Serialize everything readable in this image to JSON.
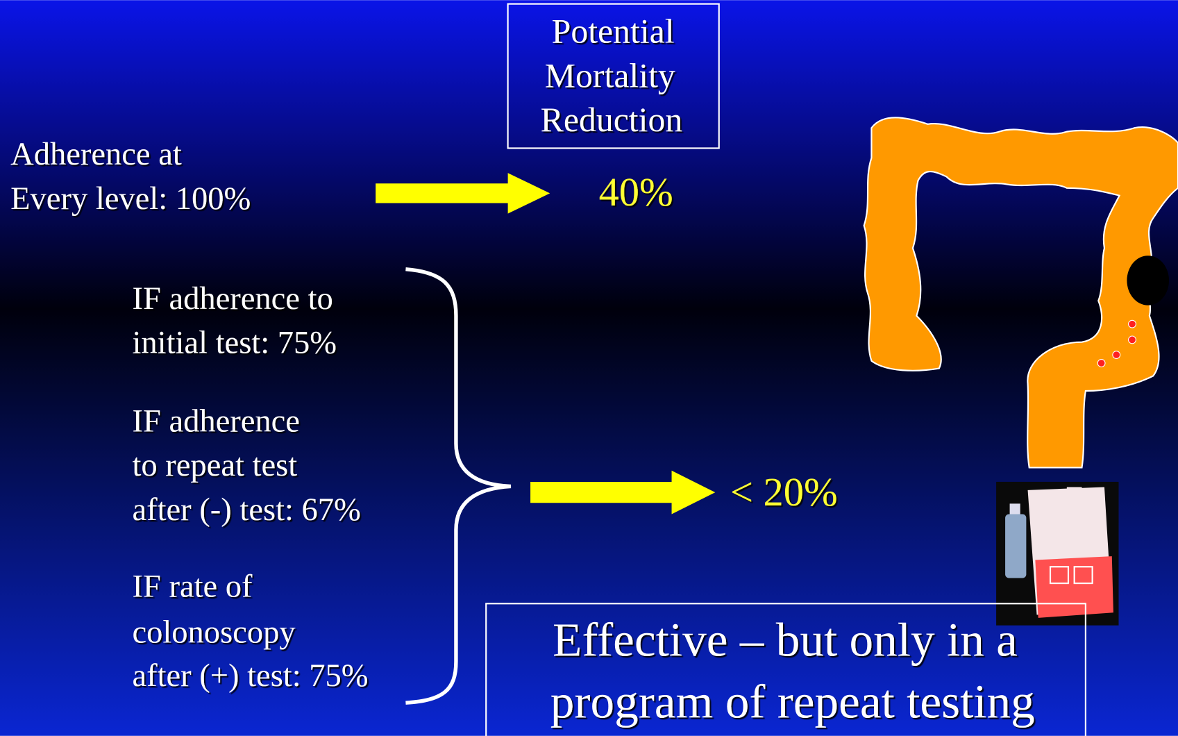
{
  "header_box": {
    "lines": [
      "Potential",
      "Mortality",
      "Reduction"
    ]
  },
  "full_adherence": {
    "lines": [
      "Adherence at",
      "Every level: 100%"
    ],
    "result": "40%"
  },
  "conditions": [
    {
      "lines": [
        "IF adherence to",
        "initial test: 75%"
      ]
    },
    {
      "lines": [
        "IF adherence",
        "to repeat test",
        "after (-) test: 67%"
      ]
    },
    {
      "lines": [
        "IF rate of",
        "colonoscopy",
        "after (+) test: 75%"
      ]
    }
  ],
  "conditions_result": "< 20%",
  "conclusion": {
    "lines": [
      "Effective – but only in a",
      "program of repeat testing"
    ]
  }
}
